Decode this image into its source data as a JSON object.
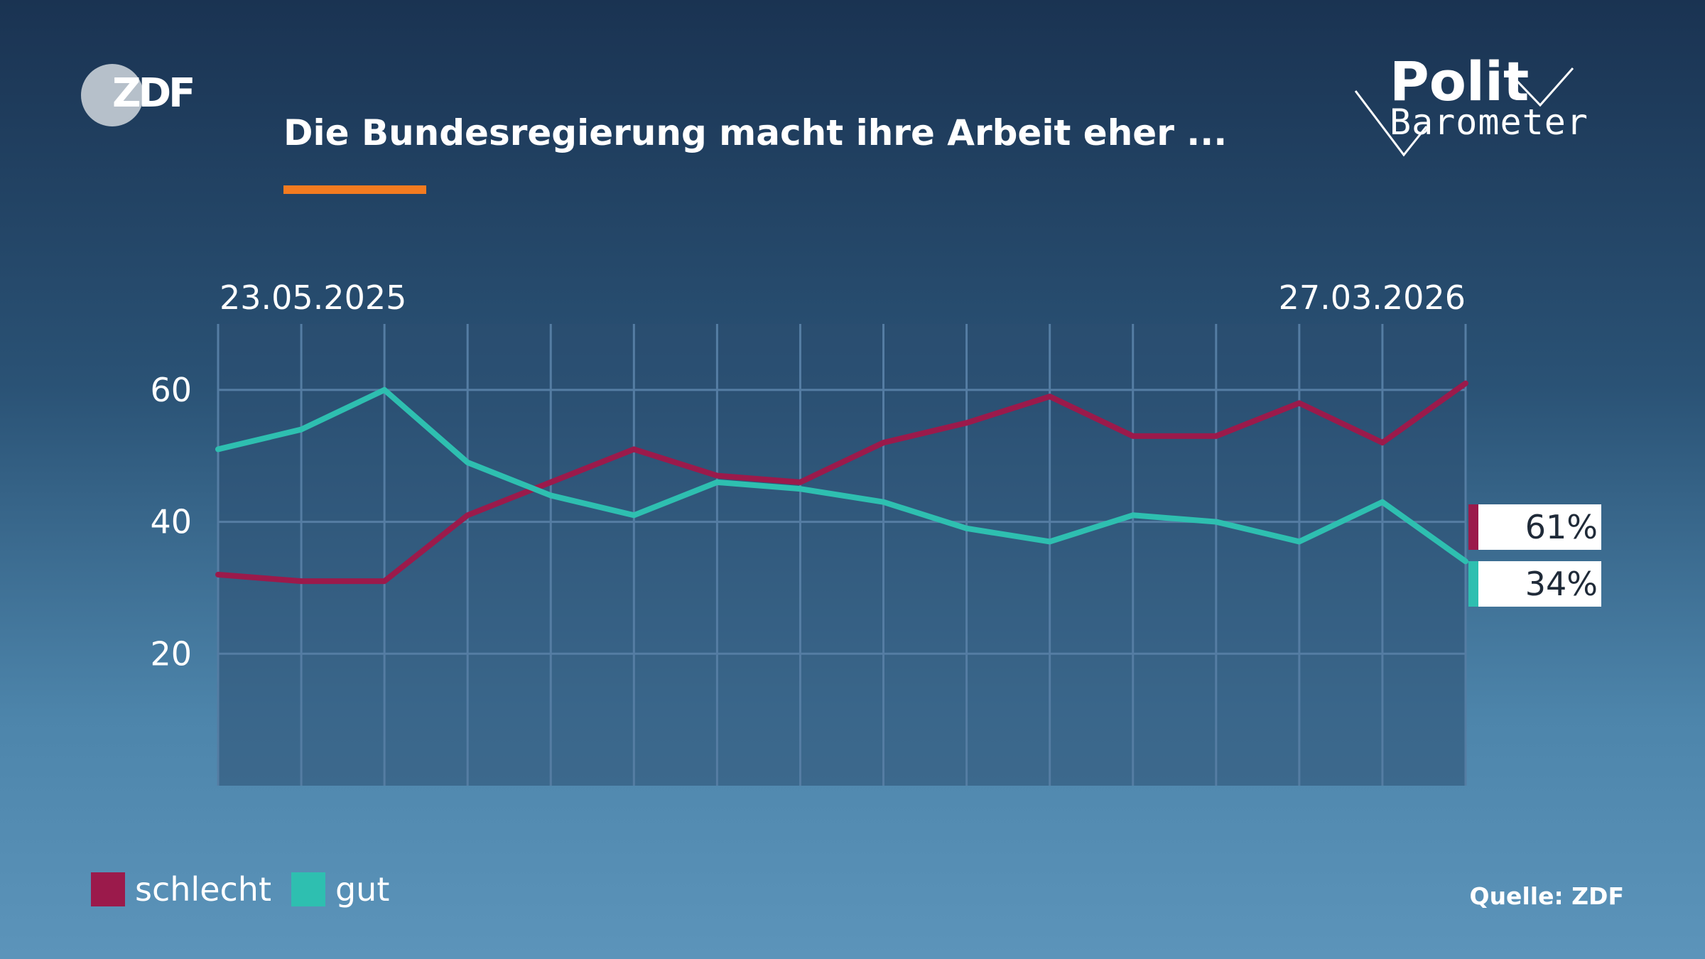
{
  "broadcaster": {
    "logo_text": "ZDF"
  },
  "brand": {
    "line1": "Polit",
    "line2": "Barometer"
  },
  "title": "Die Bundesregierung macht ihre Arbeit eher ...",
  "source": "Quelle: ZDF",
  "colors": {
    "accent": "#f47b20",
    "schlecht": "#9b1a4b",
    "gut": "#2ebfb0",
    "grid": "#557da3",
    "plot_bg": "#2b4f71"
  },
  "chart_data": {
    "type": "line",
    "title": "Die Bundesregierung macht ihre Arbeit eher ...",
    "x_first_label": "23.05.2025",
    "x_last_label": "27.03.2026",
    "ylim": [
      0,
      70
    ],
    "yticks": [
      20,
      40,
      60
    ],
    "grid": true,
    "legend": "bottom-left",
    "series": [
      {
        "name": "schlecht",
        "color": "#9b1a4b",
        "values": [
          32,
          31,
          31,
          41,
          46,
          51,
          47,
          46,
          52,
          55,
          59,
          53,
          53,
          58,
          52,
          61
        ],
        "end_label": "61%"
      },
      {
        "name": "gut",
        "color": "#2ebfb0",
        "values": [
          51,
          54,
          60,
          49,
          44,
          41,
          46,
          45,
          43,
          39,
          37,
          41,
          40,
          37,
          43,
          34
        ],
        "end_label": "34%"
      }
    ]
  }
}
